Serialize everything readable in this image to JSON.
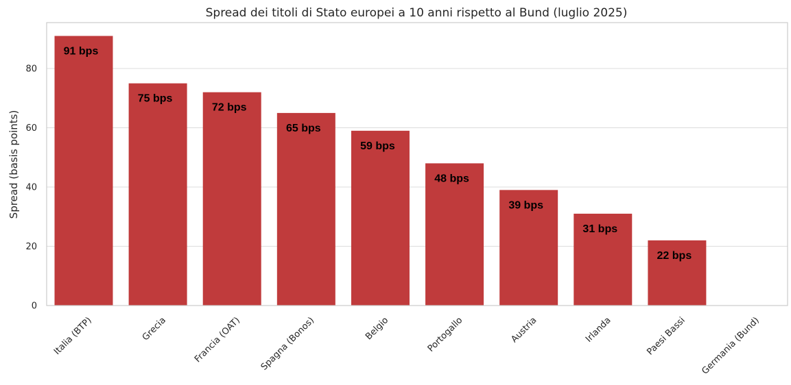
{
  "chart_data": {
    "type": "bar",
    "title": "Spread dei titoli di Stato europei a 10 anni rispetto al Bund (luglio 2025)",
    "xlabel": "",
    "ylabel": "Spread (basis points)",
    "categories": [
      "Italia (BTP)",
      "Grecia",
      "Francia (OAT)",
      "Spagna (Bonos)",
      "Belgio",
      "Portogallo",
      "Austria",
      "Irlanda",
      "Paesi Bassi",
      "Germania (Bund)"
    ],
    "values": [
      91,
      75,
      72,
      65,
      59,
      48,
      39,
      31,
      22,
      0
    ],
    "data_labels": [
      "91 bps",
      "75 bps",
      "72 bps",
      "65 bps",
      "59 bps",
      "48 bps",
      "39 bps",
      "31 bps",
      "22 bps",
      ""
    ],
    "ylim": [
      0,
      95.5
    ],
    "yticks": [
      0,
      20,
      40,
      60,
      80
    ],
    "grid": true,
    "legend": false,
    "bar_color": "#c03b3c"
  }
}
